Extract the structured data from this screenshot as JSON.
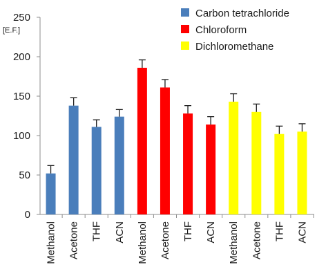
{
  "chart_data": {
    "type": "bar",
    "title": "",
    "xlabel": "",
    "ylabel": "[E.F.]",
    "ylim": [
      0,
      250
    ],
    "yticks": [
      0,
      50,
      100,
      150,
      200,
      250
    ],
    "grid": false,
    "legend_position": "top-right",
    "categories": [
      "Methanol",
      "Acetone",
      "THF",
      "ACN"
    ],
    "series": [
      {
        "name": "Carbon tetrachloride",
        "color": "#4a7ebb",
        "values": [
          52,
          138,
          111,
          124
        ],
        "errors": [
          10,
          10,
          9,
          9
        ]
      },
      {
        "name": "Chloroform",
        "color": "#ff0000",
        "values": [
          186,
          161,
          128,
          114
        ],
        "errors": [
          10,
          10,
          10,
          10
        ]
      },
      {
        "name": "Dichloromethane",
        "color": "#ffff00",
        "values": [
          143,
          130,
          102,
          105
        ],
        "errors": [
          10,
          10,
          10,
          10
        ]
      }
    ]
  }
}
